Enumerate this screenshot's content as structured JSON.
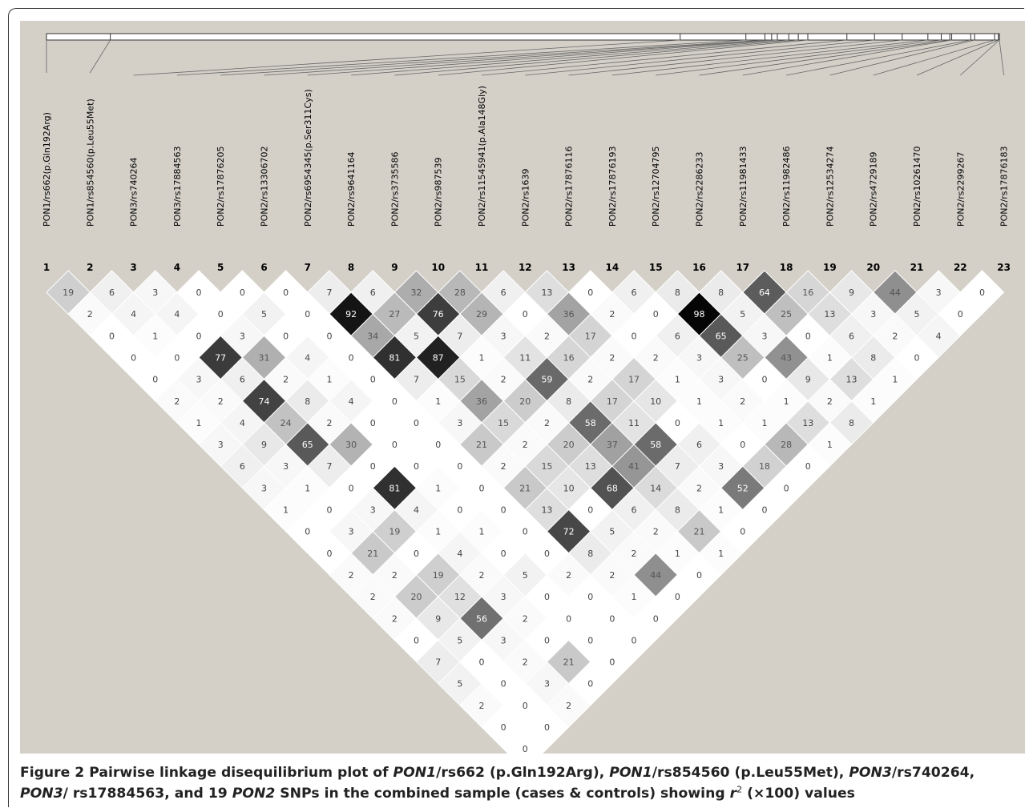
{
  "figure": {
    "caption": {
      "label": "Figure 2",
      "text_runs": [
        {
          "t": " Pairwise linkage disequilibrium plot of ",
          "i": false
        },
        {
          "t": "PON1",
          "i": true
        },
        {
          "t": "/rs662 (p.Gln192Arg), ",
          "i": false
        },
        {
          "t": "PON1",
          "i": true
        },
        {
          "t": "/rs854560 (p.Leu55Met), ",
          "i": false
        },
        {
          "t": "PON3",
          "i": true
        },
        {
          "t": "/rs740264, ",
          "i": false
        },
        {
          "t": "PON3",
          "i": true
        },
        {
          "t": "/ rs17884563, and 19 ",
          "i": false
        },
        {
          "t": "PON2",
          "i": true
        },
        {
          "t": " SNPs in the combined sample (cases & controls) showing ",
          "i": false
        },
        {
          "t": "r",
          "i": true,
          "sup": "2"
        },
        {
          "t": " (×100) values",
          "i": false
        }
      ]
    }
  },
  "snps": [
    {
      "n": "1",
      "label": "PON1/rs662(p.Gln192Arg)"
    },
    {
      "n": "2",
      "label": "PON1/rs854560(p.Leu55Met)"
    },
    {
      "n": "3",
      "label": "PON3/rs740264"
    },
    {
      "n": "4",
      "label": "PON3/rs17884563"
    },
    {
      "n": "5",
      "label": "PON2/rs17876205"
    },
    {
      "n": "6",
      "label": "PON2/rs13306702"
    },
    {
      "n": "7",
      "label": "PON2/rs6954345(p.Ser311Cys)"
    },
    {
      "n": "8",
      "label": "PON2/rs9641164"
    },
    {
      "n": "9",
      "label": "PON2/rs3735586"
    },
    {
      "n": "10",
      "label": "PON2/rs987539"
    },
    {
      "n": "11",
      "label": "PON2/rs11545941(p.Ala148Gly)"
    },
    {
      "n": "12",
      "label": "PON2/rs1639"
    },
    {
      "n": "13",
      "label": "PON2/rs17876116"
    },
    {
      "n": "14",
      "label": "PON2/rs17876193"
    },
    {
      "n": "15",
      "label": "PON2/rs12704795"
    },
    {
      "n": "16",
      "label": "PON2/rs2286233"
    },
    {
      "n": "17",
      "label": "PON2/rs11981433"
    },
    {
      "n": "18",
      "label": "PON2/rs11982486"
    },
    {
      "n": "19",
      "label": "PON2/rs12534274"
    },
    {
      "n": "20",
      "label": "PON2/rs4729189"
    },
    {
      "n": "21",
      "label": "PON2/rs10261470"
    },
    {
      "n": "22",
      "label": "PON2/rs2299267"
    },
    {
      "n": "23",
      "label": "PON2/rs17876183"
    }
  ],
  "ld_rows": [
    [
      19,
      6,
      3,
      0,
      0,
      0,
      7,
      6,
      32,
      28,
      6,
      13,
      0,
      6,
      8,
      8,
      64,
      16,
      9,
      44,
      3,
      0
    ],
    [
      2,
      4,
      4,
      0,
      5,
      0,
      92,
      27,
      76,
      29,
      0,
      36,
      2,
      0,
      98,
      5,
      25,
      13,
      3,
      5,
      0
    ],
    [
      0,
      1,
      0,
      3,
      0,
      0,
      34,
      5,
      7,
      3,
      2,
      17,
      0,
      6,
      65,
      3,
      0,
      6,
      2,
      4
    ],
    [
      0,
      0,
      77,
      31,
      4,
      0,
      81,
      87,
      1,
      11,
      16,
      2,
      2,
      3,
      25,
      43,
      1,
      8,
      0
    ],
    [
      0,
      3,
      6,
      2,
      1,
      0,
      7,
      15,
      2,
      59,
      2,
      17,
      1,
      3,
      0,
      9,
      13,
      1
    ],
    [
      2,
      2,
      74,
      8,
      4,
      0,
      1,
      36,
      20,
      8,
      17,
      10,
      1,
      2,
      1,
      2,
      1
    ],
    [
      1,
      4,
      24,
      2,
      0,
      0,
      3,
      15,
      2,
      58,
      11,
      0,
      1,
      1,
      13,
      8
    ],
    [
      3,
      9,
      65,
      30,
      0,
      0,
      21,
      2,
      20,
      37,
      58,
      6,
      0,
      28,
      1
    ],
    [
      6,
      3,
      7,
      0,
      0,
      0,
      2,
      15,
      13,
      41,
      7,
      3,
      18,
      0
    ],
    [
      3,
      1,
      0,
      81,
      1,
      0,
      21,
      10,
      68,
      14,
      2,
      52,
      0
    ],
    [
      1,
      0,
      3,
      4,
      0,
      0,
      13,
      0,
      6,
      8,
      1,
      0
    ],
    [
      0,
      3,
      19,
      1,
      1,
      0,
      72,
      5,
      2,
      21,
      0
    ],
    [
      0,
      21,
      0,
      4,
      0,
      0,
      8,
      2,
      1,
      1
    ],
    [
      2,
      2,
      19,
      2,
      5,
      2,
      2,
      44,
      0
    ],
    [
      2,
      20,
      12,
      3,
      0,
      0,
      1,
      0
    ],
    [
      2,
      9,
      56,
      2,
      0,
      0,
      0
    ],
    [
      0,
      5,
      3,
      0,
      0,
      0
    ],
    [
      7,
      0,
      2,
      21,
      0
    ],
    [
      5,
      0,
      3,
      0
    ],
    [
      2,
      0,
      2
    ],
    [
      0,
      0
    ],
    [
      0
    ]
  ],
  "colors": {
    "plot_background": "#d4d0c8",
    "cell_white": "#ffffff",
    "cell_black": "#000000",
    "cell_border": "#ffffff",
    "marker_line": "#555555"
  }
}
